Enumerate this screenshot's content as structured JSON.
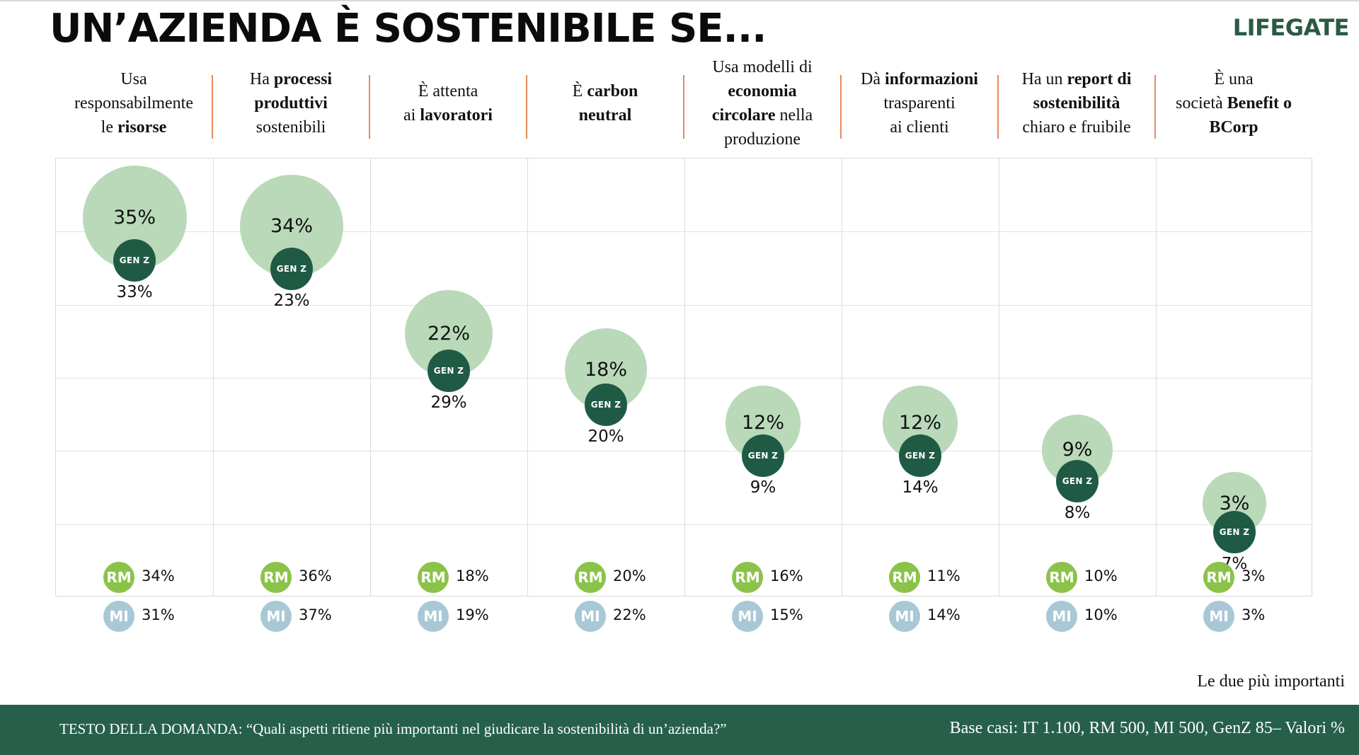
{
  "title": "UN’AZIENDA È SOSTENIBILE SE...",
  "logo": "LIFEGATE",
  "columns": [
    {
      "parts": [
        {
          "t": "Usa",
          "b": false
        },
        {
          "t": "\n",
          "b": false
        },
        {
          "t": "responsabilmente",
          "b": false
        },
        {
          "t": "\n",
          "b": false
        },
        {
          "t": "le ",
          "b": false
        },
        {
          "t": "risorse",
          "b": true
        }
      ]
    },
    {
      "parts": [
        {
          "t": "Ha ",
          "b": false
        },
        {
          "t": "processi",
          "b": true
        },
        {
          "t": "\n",
          "b": false
        },
        {
          "t": "produttivi",
          "b": true
        },
        {
          "t": "\n",
          "b": false
        },
        {
          "t": "sostenibili",
          "b": false
        }
      ]
    },
    {
      "parts": [
        {
          "t": "È attenta",
          "b": false
        },
        {
          "t": "\n",
          "b": false
        },
        {
          "t": "ai ",
          "b": false
        },
        {
          "t": "lavoratori",
          "b": true
        }
      ]
    },
    {
      "parts": [
        {
          "t": "È ",
          "b": false
        },
        {
          "t": "carbon",
          "b": true
        },
        {
          "t": "\n",
          "b": false
        },
        {
          "t": "neutral",
          "b": true
        }
      ]
    },
    {
      "parts": [
        {
          "t": "Usa modelli di",
          "b": false
        },
        {
          "t": "\n",
          "b": false
        },
        {
          "t": "economia",
          "b": true
        },
        {
          "t": "\n",
          "b": false
        },
        {
          "t": "circolare",
          "b": true
        },
        {
          "t": " nella",
          "b": false
        },
        {
          "t": "\n",
          "b": false
        },
        {
          "t": "produzione",
          "b": false
        }
      ]
    },
    {
      "parts": [
        {
          "t": "Dà ",
          "b": false
        },
        {
          "t": "informazioni",
          "b": true
        },
        {
          "t": "\n",
          "b": false
        },
        {
          "t": "trasparenti",
          "b": false
        },
        {
          "t": "\n",
          "b": false
        },
        {
          "t": "ai clienti",
          "b": false
        }
      ]
    },
    {
      "parts": [
        {
          "t": "Ha un ",
          "b": false
        },
        {
          "t": "report di",
          "b": true
        },
        {
          "t": "\n",
          "b": false
        },
        {
          "t": "sostenibilità",
          "b": true
        },
        {
          "t": "\n",
          "b": false
        },
        {
          "t": "chiaro e fruibile",
          "b": false
        }
      ]
    },
    {
      "parts": [
        {
          "t": "È una",
          "b": false
        },
        {
          "t": "\n",
          "b": false
        },
        {
          "t": "società ",
          "b": false
        },
        {
          "t": "Benefit o",
          "b": true
        },
        {
          "t": "\n",
          "b": false
        },
        {
          "t": "BCorp",
          "b": true
        }
      ]
    }
  ],
  "genz_label": "GEN Z",
  "rm_label": "RM",
  "mi_label": "MI",
  "colors": {
    "it_bubble": "#b9d9b9",
    "genz_bubble": "#1f5a45",
    "rm_badge": "#8bc34a",
    "mi_badge": "#a9c8d6",
    "separator": "#e58a5c",
    "footer": "#26604b"
  },
  "chart_data": {
    "type": "bubble",
    "categories": [
      "Usa responsabilmente le risorse",
      "Ha processi produttivi sostenibili",
      "È attenta ai lavoratori",
      "È carbon neutral",
      "Usa modelli di economia circolare nella produzione",
      "Dà informazioni trasparenti ai clienti",
      "Ha un report di sostenibilità chiaro e fruibile",
      "È una società Benefit o BCorp"
    ],
    "unit": "%",
    "series": [
      {
        "name": "IT",
        "values": [
          35,
          34,
          22,
          18,
          12,
          12,
          9,
          3
        ]
      },
      {
        "name": "GEN Z",
        "values": [
          33,
          23,
          29,
          20,
          9,
          14,
          8,
          7
        ]
      },
      {
        "name": "RM",
        "values": [
          34,
          36,
          18,
          20,
          16,
          11,
          10,
          3
        ]
      },
      {
        "name": "MI",
        "values": [
          31,
          37,
          19,
          22,
          15,
          14,
          10,
          3
        ]
      }
    ]
  },
  "note": "Le due più importanti",
  "footer": {
    "question": "TESTO DELLA DOMANDA: “Quali aspetti ritiene più importanti nel giudicare la sostenibilità di un’azienda?”",
    "base": "Base casi: IT 1.100, RM 500, MI 500, GenZ 85– Valori %"
  }
}
